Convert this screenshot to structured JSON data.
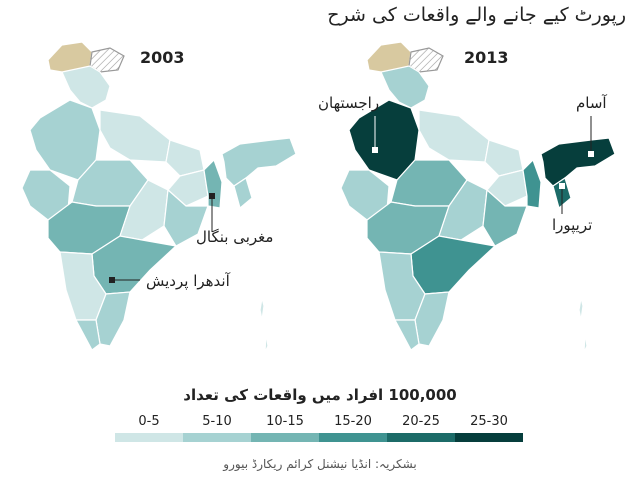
{
  "title": "رپورٹ کیے جانے والے واقعات کی شرح",
  "maps": [
    {
      "year": "2003",
      "callouts": [
        "مغربی بنگال",
        "آندھرا پردیش"
      ]
    },
    {
      "year": "2013",
      "callouts": [
        "راجستھان",
        "آسام",
        "تریپورا"
      ]
    }
  ],
  "legend": {
    "title": "100,000 افراد میں واقعات کی تعداد",
    "bins": [
      {
        "label": "0-5",
        "color": "#cfe6e6"
      },
      {
        "label": "5-10",
        "color": "#a6d2d2"
      },
      {
        "label": "10-15",
        "color": "#74b5b3"
      },
      {
        "label": "15-20",
        "color": "#3f9391"
      },
      {
        "label": "20-25",
        "color": "#1c6b68"
      },
      {
        "label": "25-30",
        "color": "#063e3c"
      }
    ]
  },
  "source": "بشکریہ: انڈیا نیشنل کرائم ریکارڈ بیورو",
  "colors": {
    "kashmir_disputed": "#d8c9a0",
    "aksai_chin_hatch": "#9a9a9a",
    "border": "#ffffff"
  },
  "regions_2013": {
    "rajasthan": "25-30",
    "assam": "25-30",
    "tripura": "20-25",
    "andhra_pradesh": "15-20",
    "west_bengal": "15-20"
  },
  "regions_2003": {
    "andhra_pradesh": "10-15",
    "west_bengal": "10-15"
  }
}
